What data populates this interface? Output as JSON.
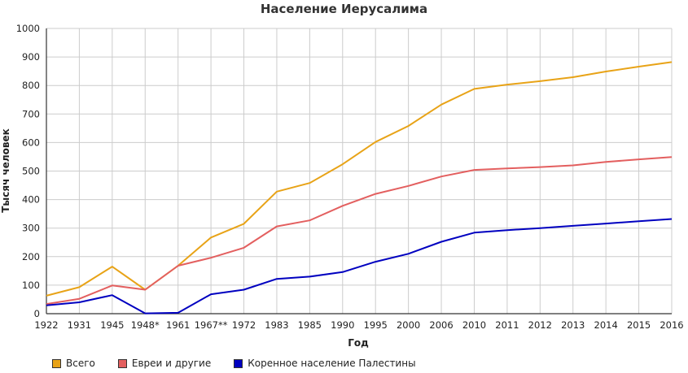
{
  "chart_data": {
    "type": "line",
    "title": "Население Иерусалима",
    "xlabel": "Год",
    "ylabel": "Тысяч человек",
    "categories": [
      "1922",
      "1931",
      "1945",
      "1948*",
      "1961",
      "1967**",
      "1972",
      "1983",
      "1985",
      "1990",
      "1995",
      "2000",
      "2006",
      "2010",
      "2011",
      "2012",
      "2013",
      "2014",
      "2015",
      "2016"
    ],
    "ylim": [
      0,
      1000
    ],
    "yticks": [
      "0",
      "100",
      "200",
      "300",
      "400",
      "500",
      "600",
      "700",
      "800",
      "900",
      "1000"
    ],
    "grid": true,
    "legend_position": "bottom-left",
    "series": [
      {
        "name": "Всего",
        "color": "#e8a317",
        "values": [
          63,
          93,
          165,
          84,
          168,
          267,
          315,
          428,
          458,
          524,
          602,
          658,
          733,
          788,
          803,
          815,
          829,
          849,
          866,
          882
        ]
      },
      {
        "name": "Евреи и другие",
        "color": "#e35f5f",
        "values": [
          34,
          52,
          99,
          84,
          168,
          196,
          231,
          306,
          327,
          378,
          420,
          448,
          481,
          504,
          509,
          514,
          520,
          532,
          541,
          549
        ]
      },
      {
        "name": "Коренное население Палестины",
        "color": "#0000c0",
        "values": [
          29,
          40,
          65,
          1,
          3,
          68,
          84,
          122,
          130,
          146,
          182,
          210,
          252,
          284,
          293,
          300,
          308,
          316,
          324,
          332
        ]
      }
    ]
  }
}
